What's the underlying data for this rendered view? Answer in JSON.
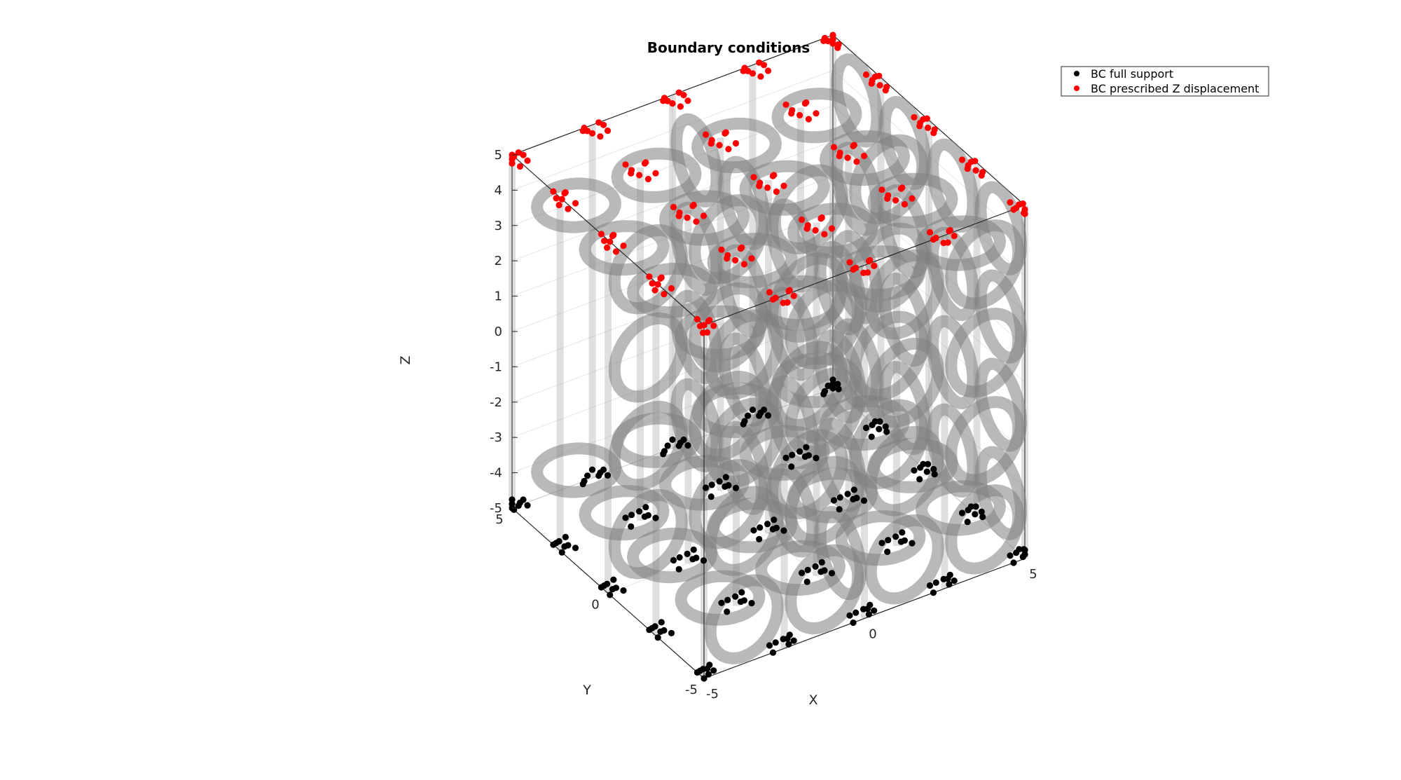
{
  "chart_data": {
    "type": "scatter",
    "title": "Boundary conditions",
    "xlabel": "X",
    "ylabel": "Y",
    "zlabel": "Z",
    "xlim": [
      -5,
      5
    ],
    "ylim": [
      -5,
      5
    ],
    "zlim": [
      -5,
      5
    ],
    "x_ticks": [
      "-5",
      "0",
      "5"
    ],
    "y_ticks": [
      "-5",
      "0",
      "5"
    ],
    "z_ticks": [
      "-5",
      "-4",
      "-3",
      "-2",
      "-1",
      "0",
      "1",
      "2",
      "3",
      "4",
      "5"
    ],
    "grid": true,
    "view": "3d-isometric",
    "legend_position": "top-right",
    "surface": {
      "description_shown": false,
      "color": "#808080",
      "opacity": 0.55
    },
    "series": [
      {
        "name": "BC full support",
        "color": "#000000",
        "z": -5,
        "cluster_centers": [
          [
            -5,
            -5
          ],
          [
            -5,
            -2.5
          ],
          [
            -5,
            0
          ],
          [
            -5,
            2.5
          ],
          [
            -5,
            5
          ],
          [
            -2.5,
            -5
          ],
          [
            -2.5,
            -2.5
          ],
          [
            -2.5,
            0
          ],
          [
            -2.5,
            2.5
          ],
          [
            -2.5,
            5
          ],
          [
            0,
            -5
          ],
          [
            0,
            -2.5
          ],
          [
            0,
            0
          ],
          [
            0,
            2.5
          ],
          [
            0,
            5
          ],
          [
            2.5,
            -5
          ],
          [
            2.5,
            -2.5
          ],
          [
            2.5,
            0
          ],
          [
            2.5,
            2.5
          ],
          [
            2.5,
            5
          ],
          [
            5,
            -5
          ],
          [
            5,
            -2.5
          ],
          [
            5,
            0
          ],
          [
            5,
            2.5
          ],
          [
            5,
            5
          ]
        ]
      },
      {
        "name": "BC prescribed Z displacement",
        "color": "#ff0000",
        "z": 5,
        "cluster_centers": [
          [
            -5,
            -5
          ],
          [
            -5,
            -2.5
          ],
          [
            -5,
            0
          ],
          [
            -5,
            2.5
          ],
          [
            -5,
            5
          ],
          [
            -2.5,
            -5
          ],
          [
            -2.5,
            -2.5
          ],
          [
            -2.5,
            0
          ],
          [
            -2.5,
            2.5
          ],
          [
            -2.5,
            5
          ],
          [
            0,
            -5
          ],
          [
            0,
            -2.5
          ],
          [
            0,
            0
          ],
          [
            0,
            2.5
          ],
          [
            0,
            5
          ],
          [
            2.5,
            -5
          ],
          [
            2.5,
            -2.5
          ],
          [
            2.5,
            0
          ],
          [
            2.5,
            2.5
          ],
          [
            2.5,
            5
          ],
          [
            5,
            -5
          ],
          [
            5,
            -2.5
          ],
          [
            5,
            0
          ],
          [
            5,
            2.5
          ],
          [
            5,
            5
          ]
        ]
      }
    ]
  }
}
